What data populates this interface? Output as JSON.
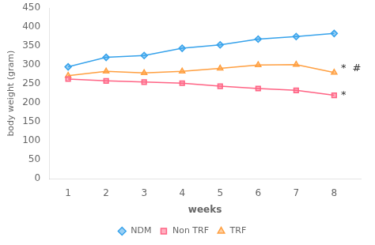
{
  "chart_data": {
    "type": "line",
    "x": [
      1,
      2,
      3,
      4,
      5,
      6,
      7,
      8
    ],
    "series": [
      {
        "name": "NDM",
        "values": [
          295,
          320,
          325,
          344,
          353,
          368,
          375,
          383
        ],
        "marker": "diamond"
      },
      {
        "name": "Non TRF",
        "values": [
          263,
          258,
          255,
          252,
          244,
          238,
          233,
          220
        ],
        "marker": "square"
      },
      {
        "name": "TRF",
        "values": [
          272,
          283,
          279,
          283,
          291,
          300,
          301,
          280
        ],
        "marker": "triangle"
      }
    ],
    "xlim": [
      0.5,
      8.7
    ],
    "xticks": [
      1,
      2,
      3,
      4,
      5,
      6,
      7,
      8
    ],
    "ylim": [
      0,
      450
    ],
    "yticks": [
      0,
      50,
      100,
      150,
      200,
      250,
      300,
      350,
      400,
      450
    ],
    "xlabel": "weeks",
    "ylabel": "body weight (gram)",
    "grid": false,
    "legend": "bottom",
    "annotations": [
      {
        "text": "*",
        "x": 8.18,
        "y": 220
      },
      {
        "text": "*",
        "x": 8.18,
        "y": 290
      },
      {
        "text": "#",
        "x": 8.48,
        "y": 290
      }
    ]
  }
}
